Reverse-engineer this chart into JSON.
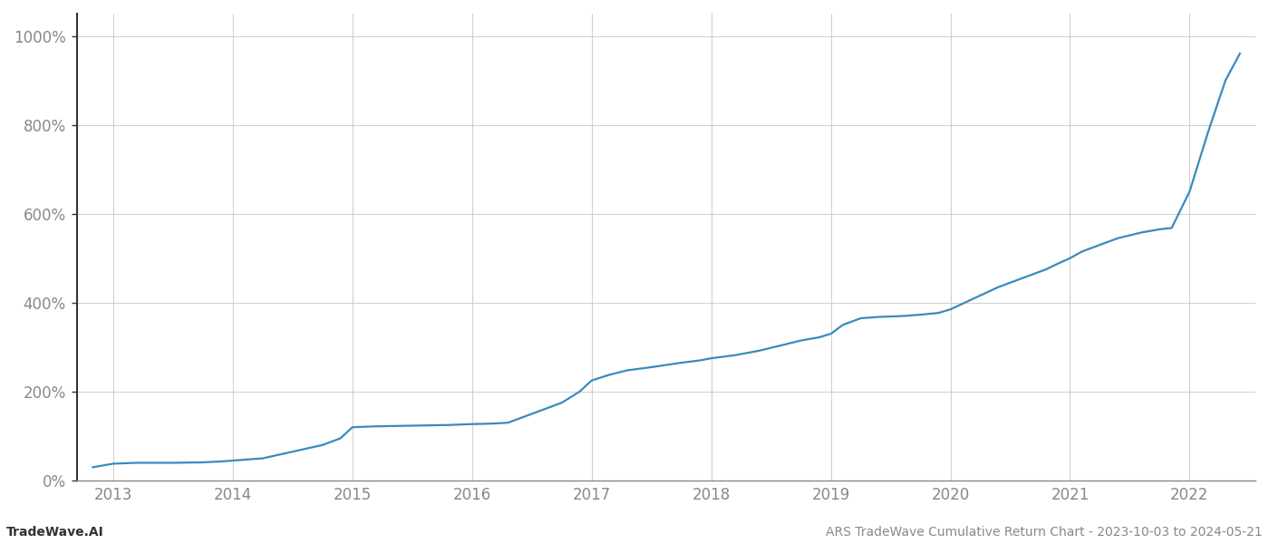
{
  "title": "ARS TradeWave Cumulative Return Chart - 2023-10-03 to 2024-05-21",
  "watermark": "TradeWave.AI",
  "line_color": "#3a8abf",
  "background_color": "#ffffff",
  "grid_color": "#cccccc",
  "x_years": [
    2013,
    2014,
    2015,
    2016,
    2017,
    2018,
    2019,
    2020,
    2021,
    2022
  ],
  "data_points": [
    [
      2012.83,
      0.3
    ],
    [
      2013.0,
      0.38
    ],
    [
      2013.2,
      0.4
    ],
    [
      2013.5,
      0.4
    ],
    [
      2013.75,
      0.41
    ],
    [
      2013.9,
      0.43
    ],
    [
      2014.0,
      0.45
    ],
    [
      2014.1,
      0.47
    ],
    [
      2014.25,
      0.5
    ],
    [
      2014.5,
      0.65
    ],
    [
      2014.75,
      0.8
    ],
    [
      2014.9,
      0.95
    ],
    [
      2015.0,
      1.2
    ],
    [
      2015.2,
      1.22
    ],
    [
      2015.4,
      1.23
    ],
    [
      2015.6,
      1.24
    ],
    [
      2015.8,
      1.25
    ],
    [
      2016.0,
      1.27
    ],
    [
      2016.15,
      1.28
    ],
    [
      2016.3,
      1.3
    ],
    [
      2016.5,
      1.5
    ],
    [
      2016.75,
      1.75
    ],
    [
      2016.9,
      2.0
    ],
    [
      2017.0,
      2.25
    ],
    [
      2017.15,
      2.38
    ],
    [
      2017.3,
      2.48
    ],
    [
      2017.5,
      2.55
    ],
    [
      2017.75,
      2.65
    ],
    [
      2017.9,
      2.7
    ],
    [
      2018.0,
      2.75
    ],
    [
      2018.2,
      2.82
    ],
    [
      2018.4,
      2.92
    ],
    [
      2018.6,
      3.05
    ],
    [
      2018.75,
      3.15
    ],
    [
      2018.9,
      3.22
    ],
    [
      2019.0,
      3.3
    ],
    [
      2019.1,
      3.5
    ],
    [
      2019.25,
      3.65
    ],
    [
      2019.4,
      3.68
    ],
    [
      2019.6,
      3.7
    ],
    [
      2019.75,
      3.73
    ],
    [
      2019.9,
      3.77
    ],
    [
      2020.0,
      3.85
    ],
    [
      2020.2,
      4.1
    ],
    [
      2020.4,
      4.35
    ],
    [
      2020.6,
      4.55
    ],
    [
      2020.8,
      4.75
    ],
    [
      2020.9,
      4.88
    ],
    [
      2021.0,
      5.0
    ],
    [
      2021.1,
      5.15
    ],
    [
      2021.25,
      5.3
    ],
    [
      2021.4,
      5.45
    ],
    [
      2021.6,
      5.58
    ],
    [
      2021.75,
      5.65
    ],
    [
      2021.85,
      5.68
    ],
    [
      2022.0,
      6.5
    ],
    [
      2022.15,
      7.8
    ],
    [
      2022.3,
      9.0
    ],
    [
      2022.42,
      9.6
    ]
  ],
  "ylim": [
    0,
    10.5
  ],
  "yticks": [
    0,
    2,
    4,
    6,
    8,
    10
  ],
  "ytick_labels": [
    "0%",
    "200%",
    "400%",
    "600%",
    "800%",
    "1000%"
  ],
  "xlim": [
    2012.7,
    2022.55
  ],
  "figsize": [
    14,
    6
  ],
  "dpi": 100,
  "line_width": 1.6,
  "left_spine_color": "#333333",
  "bottom_spine_color": "#888888",
  "title_fontsize": 10,
  "watermark_fontsize": 10,
  "tick_fontsize": 12,
  "tick_color": "#888888",
  "font_family": "DejaVu Sans"
}
